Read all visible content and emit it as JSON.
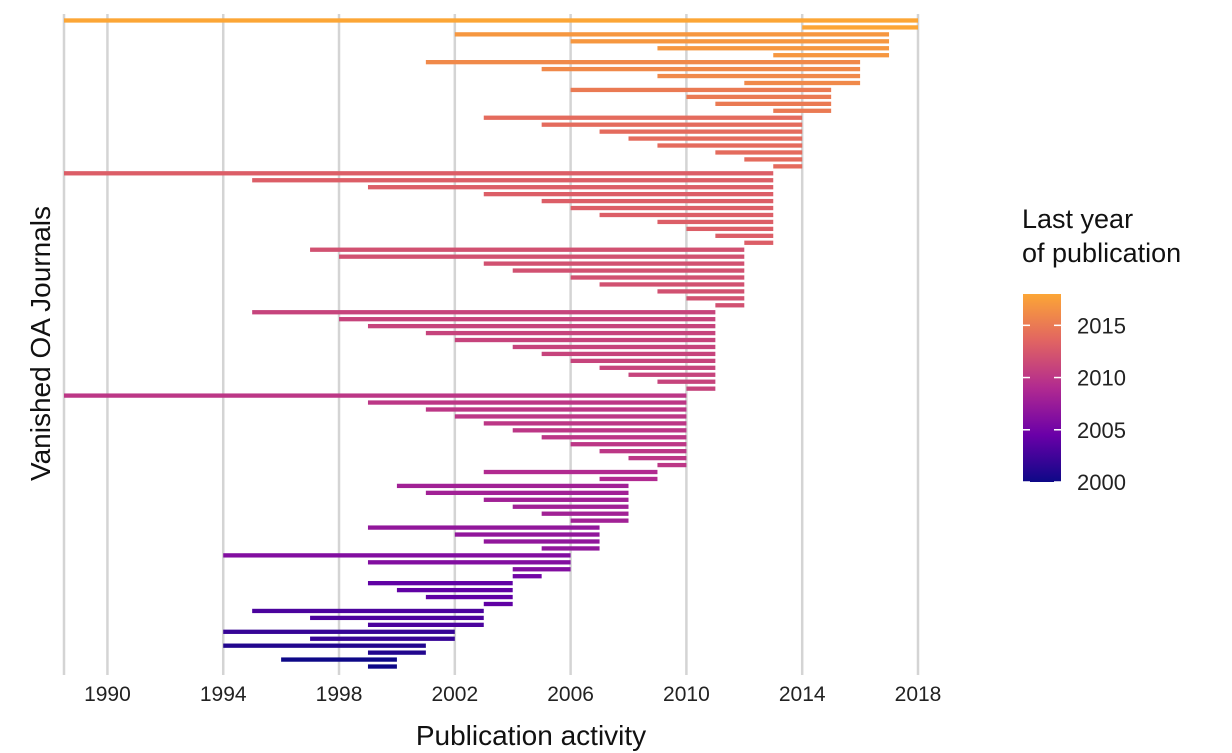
{
  "chart_data": {
    "type": "bar",
    "subtype": "range-bars (horizontal segments from first to last year of publication)",
    "xlabel": "Publication activity",
    "ylabel": "Vanished OA Journals",
    "xlim": [
      1988.5,
      2018
    ],
    "x_ticks": [
      1990,
      1994,
      1998,
      2002,
      2006,
      2010,
      2014,
      2018
    ],
    "grid": "vertical major gridlines",
    "legend": {
      "title_lines": [
        "Last year",
        "of publication"
      ],
      "type": "continuous colorbar",
      "placement": "right",
      "range": [
        2000,
        2018
      ],
      "ticks": [
        2000,
        2005,
        2010,
        2015
      ],
      "colors": [
        "#0d0887",
        "#6a00a8",
        "#b12a90",
        "#e16462",
        "#fca636"
      ]
    },
    "groups_note": "Each group: end year and the list of start years of journals ending that year (estimated from the figure).",
    "groups": [
      {
        "end": 2000,
        "starts": [
          1996,
          1999
        ]
      },
      {
        "end": 2001,
        "starts": [
          1994,
          1999
        ]
      },
      {
        "end": 2002,
        "starts": [
          1994,
          1997
        ]
      },
      {
        "end": 2003,
        "starts": [
          1995,
          1997,
          1999
        ]
      },
      {
        "end": 2004,
        "starts": [
          1999,
          2000,
          2001,
          2003
        ]
      },
      {
        "end": 2005,
        "starts": [
          2004
        ]
      },
      {
        "end": 2006,
        "starts": [
          1994,
          1999,
          2004
        ]
      },
      {
        "end": 2007,
        "starts": [
          1999,
          2002,
          2003,
          2005
        ]
      },
      {
        "end": 2008,
        "starts": [
          2000,
          2001,
          2003,
          2004,
          2005,
          2006
        ]
      },
      {
        "end": 2009,
        "starts": [
          2003,
          2007
        ]
      },
      {
        "end": 2010,
        "starts": [
          1988.5,
          1999,
          2001,
          2002,
          2003,
          2004,
          2005,
          2006,
          2007,
          2008,
          2009
        ]
      },
      {
        "end": 2011,
        "starts": [
          1995,
          1998,
          1999,
          2001,
          2002,
          2004,
          2005,
          2006,
          2007,
          2008,
          2009,
          2010
        ]
      },
      {
        "end": 2012,
        "starts": [
          1997,
          1998,
          2003,
          2004,
          2006,
          2007,
          2009,
          2010,
          2011
        ]
      },
      {
        "end": 2013,
        "starts": [
          1988.5,
          1995,
          1999,
          2003,
          2005,
          2006,
          2007,
          2009,
          2010,
          2011,
          2012
        ]
      },
      {
        "end": 2014,
        "starts": [
          2003,
          2005,
          2007,
          2008,
          2009,
          2011,
          2012,
          2013
        ]
      },
      {
        "end": 2015,
        "starts": [
          2006,
          2010,
          2011,
          2013
        ]
      },
      {
        "end": 2016,
        "starts": [
          2001,
          2005,
          2009,
          2012
        ]
      },
      {
        "end": 2017,
        "starts": [
          2002,
          2006,
          2009,
          2013
        ]
      },
      {
        "end": 2018,
        "starts": [
          1988.5,
          2014
        ]
      }
    ]
  }
}
